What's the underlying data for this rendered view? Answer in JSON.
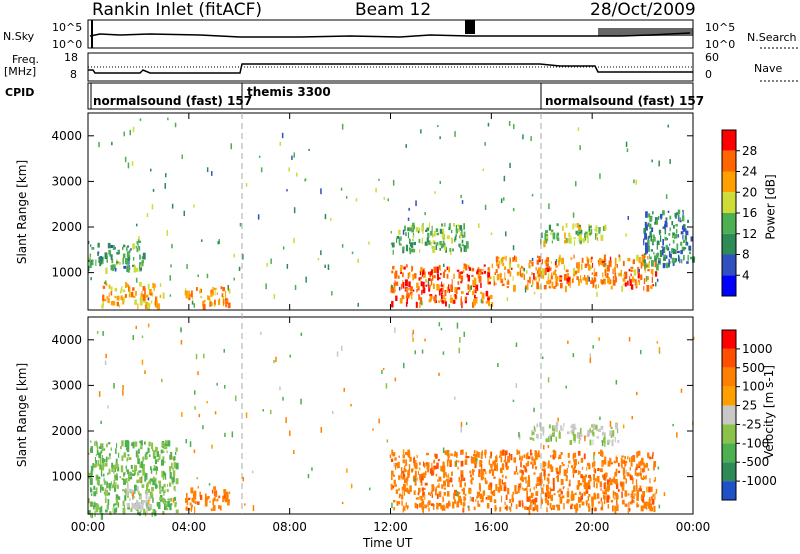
{
  "header": {
    "station": "Rankin Inlet (fitACF)",
    "beam": "Beam 12",
    "date": "28/Oct/2009"
  },
  "top_panels": {
    "nsky_label": "N.Sky",
    "nsky_ticks": [
      "10^5",
      "10^0"
    ],
    "nsearch_label": "N.Search",
    "nsearch_ticks": [
      "10^5",
      "10^0"
    ],
    "freq_label": "Freq.",
    "freq_unit": "[MHz]",
    "freq_ticks": [
      "18",
      "8"
    ],
    "nave_label": "Nave",
    "nave_ticks": [
      "60",
      "0"
    ],
    "cpid_label": "CPID",
    "cpid_segments": [
      "normalsound (fast) 157",
      "themis 3300",
      "normalsound (fast) 157"
    ]
  },
  "chart_data": [
    {
      "type": "heatmap",
      "name": "power-panel",
      "ylabel": "Slant Range [km]",
      "yticks": [
        "4000",
        "3000",
        "2000",
        "1000"
      ],
      "ylim": [
        180,
        4500
      ],
      "xlim": [
        0,
        24
      ],
      "colorbar_label": "Power [dB]",
      "colorbar_ticks": [
        "28",
        "24",
        "20",
        "16",
        "12",
        "8",
        "4"
      ],
      "colorbar_colors": [
        "#0000ff",
        "#3050c0",
        "#2e8b57",
        "#4caf50",
        "#cddc39",
        "#ffa000",
        "#ff6600",
        "#ff0000"
      ],
      "regions": [
        {
          "t0": 0.0,
          "t1": 2.2,
          "r0": 1100,
          "r1": 1700,
          "level": 12
        },
        {
          "t0": 0.5,
          "t1": 3.0,
          "r0": 300,
          "r1": 800,
          "level": 22
        },
        {
          "t0": 3.8,
          "t1": 5.6,
          "r0": 300,
          "r1": 700,
          "level": 22
        },
        {
          "t0": 12.0,
          "t1": 16.0,
          "r0": 350,
          "r1": 1200,
          "level": 26
        },
        {
          "t0": 16.0,
          "t1": 22.5,
          "r0": 700,
          "r1": 1400,
          "level": 24
        },
        {
          "t0": 12.0,
          "t1": 15.0,
          "r0": 1500,
          "r1": 2100,
          "level": 14
        },
        {
          "t0": 18.0,
          "t1": 20.5,
          "r0": 1700,
          "r1": 2100,
          "level": 16
        },
        {
          "t0": 22.0,
          "t1": 24.0,
          "r0": 1200,
          "r1": 2400,
          "level": 10
        }
      ]
    },
    {
      "type": "heatmap",
      "name": "velocity-panel",
      "ylabel": "Slant Range [km]",
      "yticks": [
        "4000",
        "3000",
        "2000",
        "1000"
      ],
      "ylim": [
        180,
        4500
      ],
      "xlim": [
        0,
        24
      ],
      "xticks": [
        "00:00",
        "04:00",
        "08:00",
        "12:00",
        "16:00",
        "20:00",
        "00:00"
      ],
      "xlabel": "Time UT",
      "colorbar_label": "Velocity [m s-1]",
      "colorbar_ticks": [
        "1000",
        "500",
        "100",
        "25",
        "-25",
        "-100",
        "-500",
        "-1000"
      ],
      "colorbar_colors": [
        "#1e50c8",
        "#2e8b57",
        "#4caf50",
        "#8bc34a",
        "#c8c8c8",
        "#ffa000",
        "#ff8000",
        "#ff5000",
        "#ff0000"
      ],
      "regions": [
        {
          "t0": 0.0,
          "t1": 3.5,
          "r0": 200,
          "r1": 1800,
          "level": 100
        },
        {
          "t0": 1.5,
          "t1": 2.5,
          "r0": 300,
          "r1": 800,
          "level": 0
        },
        {
          "t0": 3.8,
          "t1": 5.6,
          "r0": 300,
          "r1": 800,
          "level": -400
        },
        {
          "t0": 12.0,
          "t1": 22.5,
          "r0": 300,
          "r1": 1600,
          "level": -400
        },
        {
          "t0": 17.5,
          "t1": 21.0,
          "r0": 1800,
          "r1": 2200,
          "level": 25
        }
      ]
    }
  ]
}
